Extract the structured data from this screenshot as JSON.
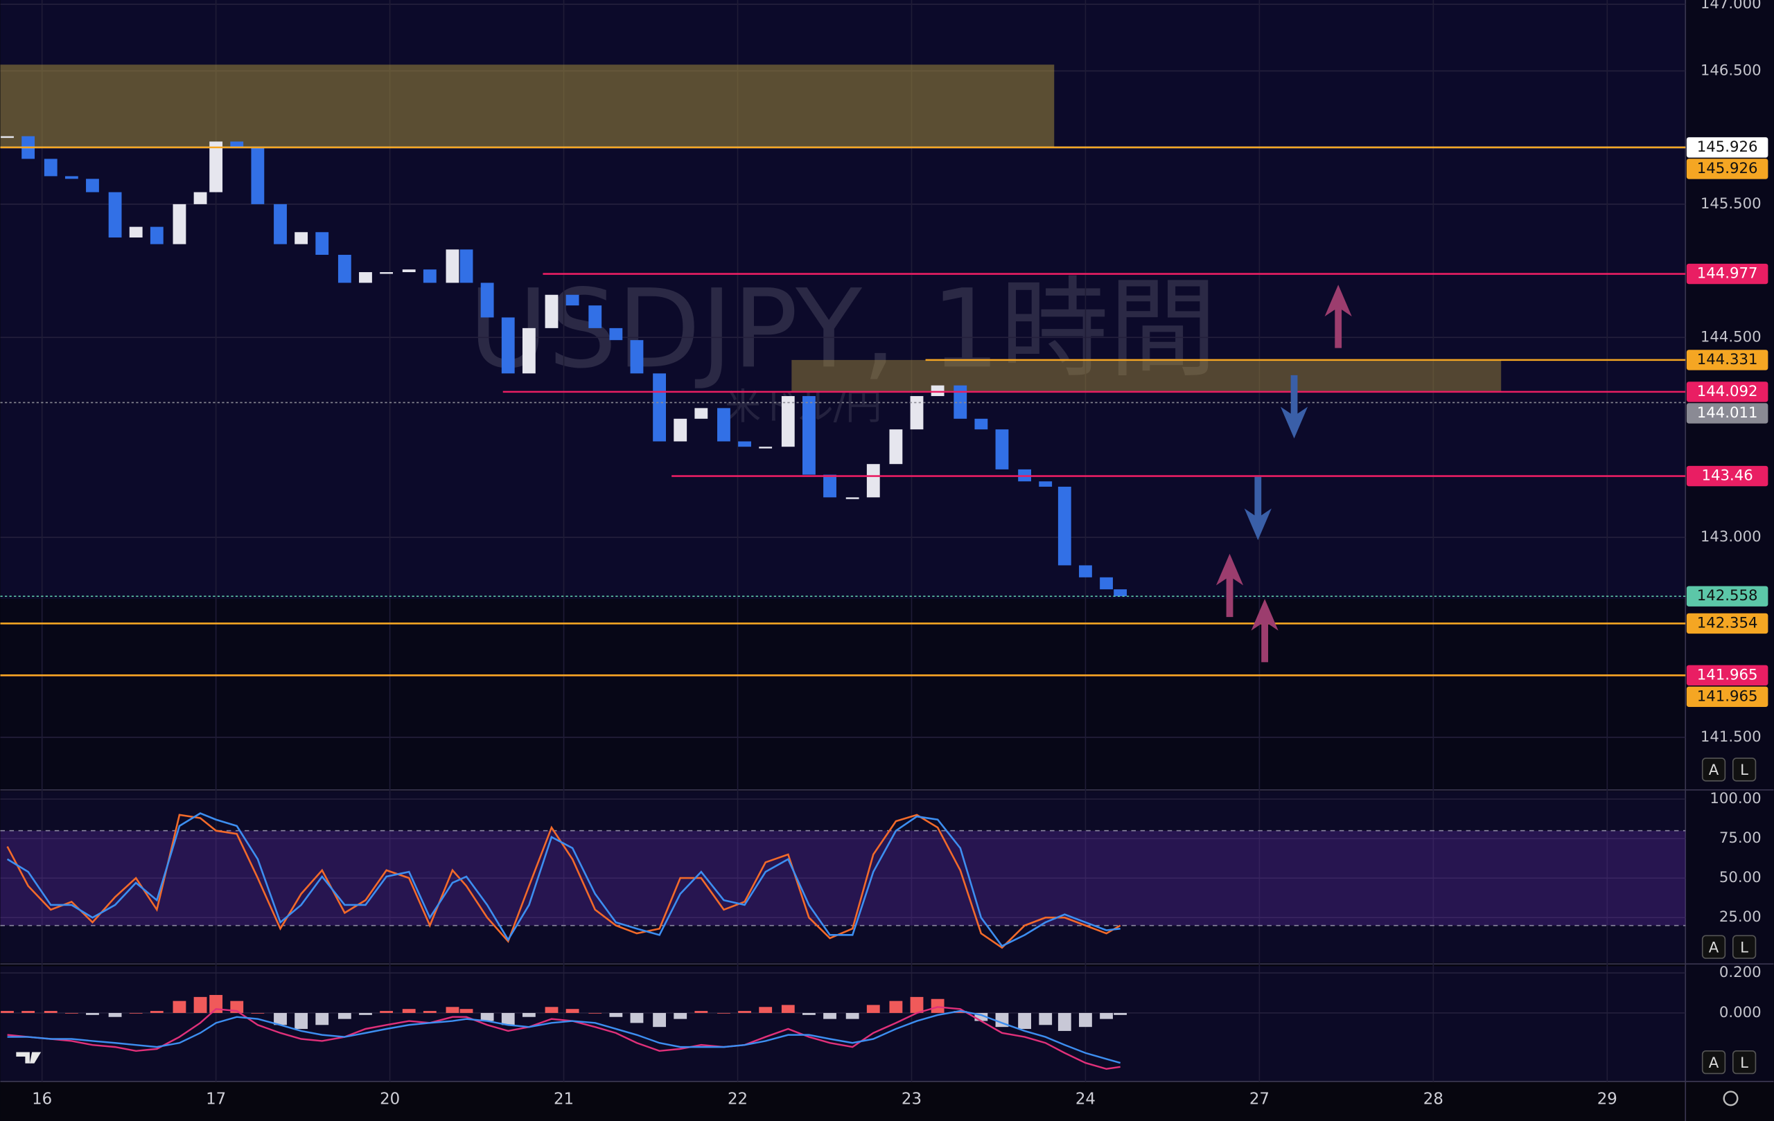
{
  "chart_data": [
    {
      "type": "candlestick",
      "title": "USDJPY, 1時間",
      "subtitle": "米ドル/円",
      "x": [
        -0.2,
        -0.08,
        0.05,
        0.17,
        0.29,
        0.42,
        0.54,
        0.66,
        0.79,
        0.91,
        1.0,
        1.12,
        1.24,
        1.37,
        1.49,
        1.61,
        1.74,
        1.86,
        1.98,
        2.11,
        2.23,
        2.36,
        2.44,
        2.56,
        2.68,
        2.8,
        2.93,
        3.05,
        3.18,
        3.3,
        3.42,
        3.55,
        3.67,
        3.79,
        3.92,
        4.04,
        4.16,
        4.29,
        4.41,
        4.53,
        4.66,
        4.78,
        4.91,
        5.03,
        5.15,
        5.28,
        5.4,
        5.52,
        5.65,
        5.77,
        5.88,
        6.0,
        6.12,
        6.2
      ],
      "values": [
        146.01,
        145.84,
        145.71,
        145.69,
        145.59,
        145.25,
        145.33,
        145.2,
        145.5,
        145.59,
        145.97,
        145.93,
        145.5,
        145.2,
        145.29,
        145.12,
        144.91,
        144.99,
        144.99,
        145.01,
        144.91,
        145.16,
        144.91,
        144.65,
        144.23,
        144.57,
        144.82,
        144.74,
        144.57,
        144.48,
        144.23,
        143.72,
        143.89,
        143.97,
        143.72,
        143.68,
        143.68,
        144.06,
        143.47,
        143.3,
        143.3,
        143.55,
        143.81,
        144.06,
        144.14,
        143.89,
        143.81,
        143.51,
        143.42,
        143.38,
        142.79,
        142.7,
        142.61,
        142.558
      ],
      "up_color": "#e6e6ee",
      "down_color": "#3270e6",
      "xlim": [
        -0.24,
        9.45
      ],
      "ylim": [
        141.105,
        147.032
      ],
      "xticks": [
        {
          "value": 0,
          "label": "16"
        },
        {
          "value": 1,
          "label": "17"
        },
        {
          "value": 2,
          "label": "20"
        },
        {
          "value": 3,
          "label": "21"
        },
        {
          "value": 4,
          "label": "22"
        },
        {
          "value": 5,
          "label": "23"
        },
        {
          "value": 6,
          "label": "24"
        },
        {
          "value": 7,
          "label": "27"
        },
        {
          "value": 8,
          "label": "28"
        },
        {
          "value": 9,
          "label": "29"
        }
      ],
      "yticks": [
        {
          "value": 147,
          "label": "147.000"
        },
        {
          "value": 146.5,
          "label": "146.500"
        },
        {
          "value": 145.5,
          "label": "145.500"
        },
        {
          "value": 144.5,
          "label": "144.500"
        },
        {
          "value": 143,
          "label": "143.000"
        },
        {
          "value": 141.5,
          "label": "141.500"
        }
      ],
      "grid": true,
      "zones": [
        {
          "from": 145.926,
          "to": 146.547,
          "x": [
            -0.24,
            5.82
          ],
          "color": "rgba(170,145,60,0.5)"
        },
        {
          "from": 144.092,
          "to": 144.331,
          "x": [
            4.31,
            8.39
          ],
          "color": "rgba(170,145,60,0.45)"
        }
      ],
      "levels": [
        {
          "value": 145.926,
          "color": "#ffffff",
          "text_color": "#111111",
          "from": -0.24,
          "style": "solid"
        },
        {
          "value": 145.926,
          "color": "#f5a623",
          "text_color": "#111111",
          "from": -0.24,
          "style": "solid"
        },
        {
          "value": 144.977,
          "color": "#e91e63",
          "text_color": "#ffffff",
          "from": 2.88,
          "style": "solid"
        },
        {
          "value": 144.331,
          "color": "#f5a623",
          "text_color": "#111111",
          "from": 5.08,
          "style": "solid"
        },
        {
          "value": 144.092,
          "color": "#e91e63",
          "text_color": "#ffffff",
          "from": 2.65,
          "style": "solid"
        },
        {
          "value": 144.011,
          "color": "#8a8a94",
          "text_color": "#ffffff",
          "from": -0.24,
          "style": "dotted"
        },
        {
          "value": 143.46,
          "color": "#e91e63",
          "text_color": "#ffffff",
          "from": 3.62,
          "style": "solid"
        },
        {
          "value": 142.558,
          "color": "#5cc7a8",
          "text_color": "#111111",
          "from": -0.24,
          "style": "dotted"
        },
        {
          "value": 142.354,
          "color": "#f5a623",
          "text_color": "#111111",
          "from": -0.24,
          "style": "solid"
        },
        {
          "value": 141.965,
          "color": "#e91e63",
          "text_color": "#ffffff",
          "from": -0.24,
          "style": "solid"
        },
        {
          "value": 141.965,
          "color": "#f5a623",
          "text_color": "#111111",
          "from": -0.24,
          "style": "solid"
        }
      ]
    },
    {
      "type": "line",
      "x": [
        -0.2,
        -0.08,
        0.05,
        0.17,
        0.29,
        0.42,
        0.54,
        0.66,
        0.79,
        0.91,
        1.0,
        1.12,
        1.24,
        1.37,
        1.49,
        1.61,
        1.74,
        1.86,
        1.98,
        2.11,
        2.23,
        2.36,
        2.44,
        2.56,
        2.68,
        2.8,
        2.93,
        3.05,
        3.18,
        3.3,
        3.42,
        3.55,
        3.67,
        3.79,
        3.92,
        4.04,
        4.16,
        4.29,
        4.41,
        4.53,
        4.66,
        4.78,
        4.91,
        5.03,
        5.15,
        5.28,
        5.4,
        5.52,
        5.65,
        5.77,
        5.88,
        6.0,
        6.12,
        6.2
      ],
      "series": [
        {
          "color": "#f26a2a",
          "values": [
            70,
            45,
            30,
            35,
            22,
            38,
            50,
            30,
            90,
            88,
            80,
            78,
            50,
            18,
            40,
            55,
            28,
            36,
            55,
            50,
            20,
            55,
            45,
            25,
            10,
            45,
            82,
            62,
            30,
            20,
            15,
            18,
            50,
            50,
            30,
            35,
            60,
            65,
            25,
            12,
            18,
            65,
            86,
            90,
            82,
            55,
            15,
            6,
            20,
            25,
            25,
            20,
            15,
            20
          ]
        },
        {
          "color": "#3d8ef0",
          "values": [
            62,
            54,
            33,
            33,
            25,
            33,
            47,
            36,
            83,
            91,
            87,
            83,
            62,
            22,
            33,
            51,
            33,
            33,
            51,
            54,
            25,
            47,
            51,
            33,
            11,
            33,
            76,
            69,
            40,
            22,
            18,
            14,
            40,
            54,
            36,
            33,
            54,
            62,
            33,
            14,
            14,
            54,
            80,
            89,
            87,
            69,
            25,
            7,
            14,
            22,
            27,
            22,
            17,
            18
          ]
        }
      ],
      "xlim": [
        -0.24,
        9.45
      ],
      "ylim": [
        -3.6,
        105.1
      ],
      "yticks": [
        {
          "value": 100,
          "label": "100.00"
        },
        {
          "value": 75,
          "label": "75.00"
        },
        {
          "value": 50,
          "label": "50.00"
        },
        {
          "value": 25,
          "label": "25.00"
        }
      ],
      "grid": true,
      "bands": [
        20,
        80
      ],
      "band_color": "rgba(110,50,190,0.28)"
    },
    {
      "type": "macd",
      "x": [
        -0.2,
        -0.08,
        0.05,
        0.17,
        0.29,
        0.42,
        0.54,
        0.66,
        0.79,
        0.91,
        1.0,
        1.12,
        1.24,
        1.37,
        1.49,
        1.61,
        1.74,
        1.86,
        1.98,
        2.11,
        2.23,
        2.36,
        2.44,
        2.56,
        2.68,
        2.8,
        2.93,
        3.05,
        3.18,
        3.3,
        3.42,
        3.55,
        3.67,
        3.79,
        3.92,
        4.04,
        4.16,
        4.29,
        4.41,
        4.53,
        4.66,
        4.78,
        4.91,
        5.03,
        5.15,
        5.28,
        5.4,
        5.52,
        5.65,
        5.77,
        5.88,
        6.0,
        6.12,
        6.2
      ],
      "histogram": {
        "up_color": "#f05a5a",
        "down_color": "#c8c8d6",
        "values": [
          0.01,
          0.01,
          0.01,
          0.0,
          -0.01,
          -0.02,
          0.0,
          0.01,
          0.06,
          0.08,
          0.09,
          0.06,
          0.0,
          -0.06,
          -0.08,
          -0.06,
          -0.03,
          -0.01,
          0.01,
          0.02,
          0.01,
          0.03,
          0.02,
          -0.04,
          -0.06,
          -0.02,
          0.03,
          0.02,
          0.0,
          -0.02,
          -0.05,
          -0.07,
          -0.03,
          0.01,
          0.0,
          0.01,
          0.03,
          0.04,
          -0.01,
          -0.03,
          -0.03,
          0.04,
          0.06,
          0.08,
          0.07,
          0.01,
          -0.04,
          -0.07,
          -0.08,
          -0.06,
          -0.09,
          -0.07,
          -0.03,
          -0.01
        ]
      },
      "series": [
        {
          "color": "#e0307a",
          "values": [
            -0.11,
            -0.12,
            -0.13,
            -0.14,
            -0.16,
            -0.17,
            -0.19,
            -0.18,
            -0.12,
            -0.05,
            0.02,
            0.01,
            -0.06,
            -0.1,
            -0.13,
            -0.14,
            -0.12,
            -0.08,
            -0.06,
            -0.04,
            -0.05,
            -0.02,
            -0.02,
            -0.06,
            -0.09,
            -0.07,
            -0.03,
            -0.04,
            -0.07,
            -0.1,
            -0.15,
            -0.19,
            -0.18,
            -0.16,
            -0.17,
            -0.16,
            -0.12,
            -0.08,
            -0.12,
            -0.15,
            -0.17,
            -0.1,
            -0.05,
            0.0,
            0.03,
            0.02,
            -0.04,
            -0.1,
            -0.12,
            -0.15,
            -0.2,
            -0.25,
            -0.28,
            -0.27
          ]
        },
        {
          "color": "#3d8ef0",
          "values": [
            -0.12,
            -0.12,
            -0.13,
            -0.13,
            -0.14,
            -0.15,
            -0.16,
            -0.17,
            -0.15,
            -0.1,
            -0.05,
            -0.02,
            -0.03,
            -0.06,
            -0.09,
            -0.11,
            -0.12,
            -0.1,
            -0.08,
            -0.06,
            -0.05,
            -0.04,
            -0.03,
            -0.04,
            -0.06,
            -0.07,
            -0.05,
            -0.04,
            -0.05,
            -0.08,
            -0.11,
            -0.15,
            -0.17,
            -0.17,
            -0.17,
            -0.16,
            -0.14,
            -0.11,
            -0.11,
            -0.13,
            -0.15,
            -0.13,
            -0.08,
            -0.04,
            -0.01,
            0.01,
            -0.01,
            -0.05,
            -0.09,
            -0.12,
            -0.16,
            -0.2,
            -0.23,
            -0.25
          ]
        }
      ],
      "xlim": [
        -0.24,
        9.45
      ],
      "ylim": [
        -0.337,
        0.234
      ],
      "yticks": [
        {
          "value": 0.2,
          "label": "0.200"
        },
        {
          "value": 0,
          "label": "0.000"
        }
      ],
      "grid": true
    }
  ],
  "controls": [
    [
      "A",
      "L"
    ],
    [
      "A",
      "L"
    ],
    [
      "A",
      "L"
    ]
  ]
}
